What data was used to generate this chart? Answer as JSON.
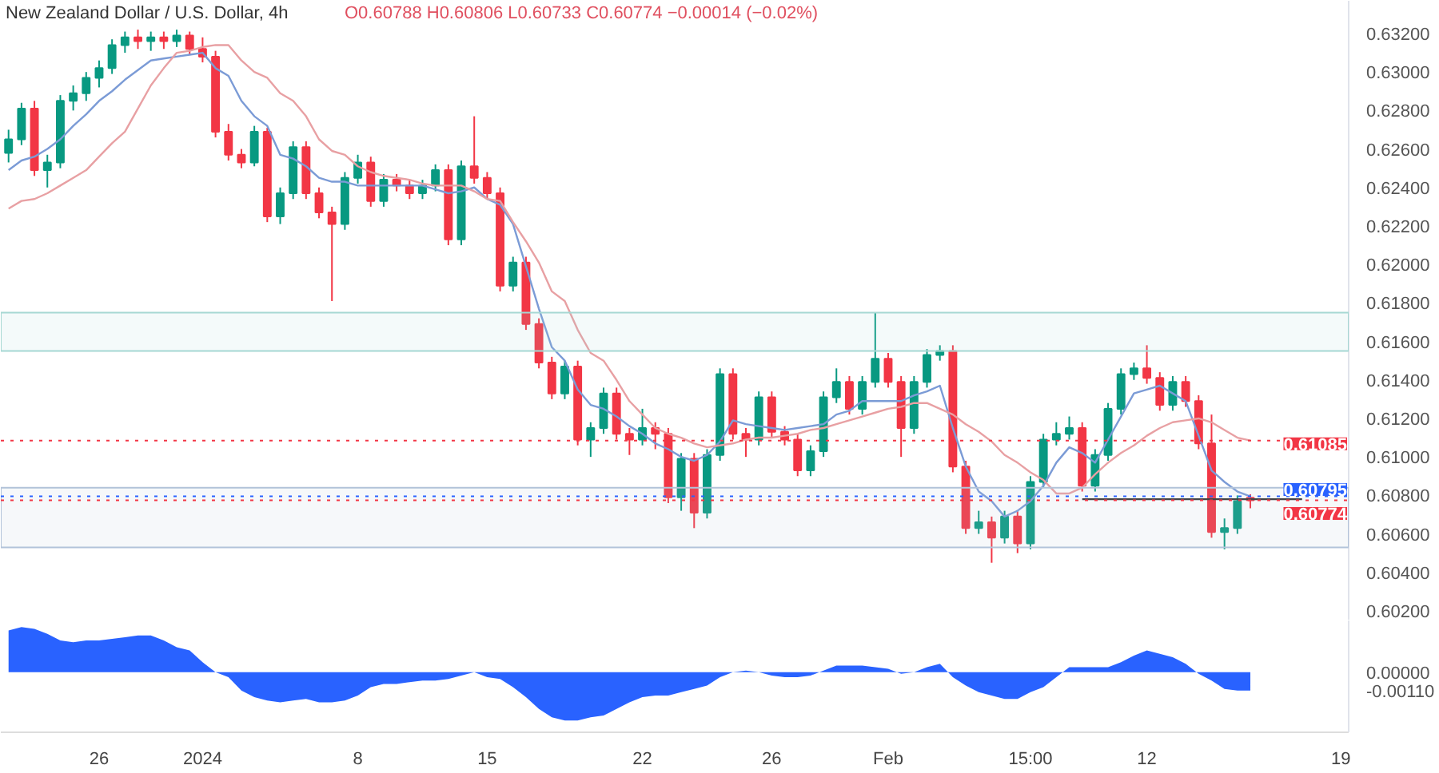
{
  "chart_data": [
    {
      "type": "candlestick",
      "title": "New Zealand Dollar / U.S. Dollar, 4h",
      "subtitle": "O0.60788 H0.60806 L0.60733 C0.60774 −0.00014 (−0.02%)",
      "categories": [
        null,
        null,
        null,
        null,
        null,
        null,
        null,
        null,
        null,
        null,
        null,
        null,
        null,
        null,
        null,
        null,
        null,
        null,
        null,
        null,
        null,
        null,
        null,
        null,
        null,
        null,
        null,
        null,
        null,
        null,
        null,
        null,
        null,
        null,
        null,
        null,
        null,
        null,
        null,
        null,
        null,
        null,
        null,
        null,
        null,
        null,
        null,
        null,
        null,
        null,
        null,
        null,
        null,
        null,
        null,
        null,
        null,
        null,
        null,
        null,
        null,
        null,
        null,
        null,
        null,
        null,
        null,
        null,
        null,
        null,
        null,
        null,
        null,
        null,
        null,
        null,
        null,
        null,
        null,
        null,
        null,
        null,
        null,
        null,
        null,
        null,
        null,
        null,
        null,
        null,
        null,
        null,
        null,
        null,
        null,
        null,
        null,
        null,
        null,
        null,
        null,
        null,
        null,
        null
      ],
      "ohlc": [
        [
          0.6258,
          0.627,
          0.6253,
          0.6265
        ],
        [
          0.6265,
          0.6284,
          0.6262,
          0.6281
        ],
        [
          0.6281,
          0.6285,
          0.6246,
          0.6249
        ],
        [
          0.6249,
          0.6257,
          0.624,
          0.6253
        ],
        [
          0.6253,
          0.6288,
          0.625,
          0.6285
        ],
        [
          0.6285,
          0.6293,
          0.628,
          0.6289
        ],
        [
          0.6289,
          0.63,
          0.6285,
          0.6297
        ],
        [
          0.6297,
          0.6306,
          0.6292,
          0.6302
        ],
        [
          0.6302,
          0.6317,
          0.6299,
          0.6314
        ],
        [
          0.6314,
          0.6321,
          0.631,
          0.6318
        ],
        [
          0.6318,
          0.6322,
          0.6312,
          0.6316
        ],
        [
          0.6316,
          0.6321,
          0.6311,
          0.6318
        ],
        [
          0.6318,
          0.6321,
          0.6312,
          0.6316
        ],
        [
          0.6316,
          0.6322,
          0.6313,
          0.6319
        ],
        [
          0.6319,
          0.6321,
          0.6309,
          0.6312
        ],
        [
          0.6312,
          0.6318,
          0.6305,
          0.6308
        ],
        [
          0.6308,
          0.6311,
          0.6266,
          0.6269
        ],
        [
          0.6269,
          0.6273,
          0.6254,
          0.6257
        ],
        [
          0.6257,
          0.626,
          0.625,
          0.6253
        ],
        [
          0.6253,
          0.6272,
          0.6251,
          0.6269
        ],
        [
          0.6269,
          0.6271,
          0.6222,
          0.6225
        ],
        [
          0.6225,
          0.624,
          0.6221,
          0.6237
        ],
        [
          0.6237,
          0.6264,
          0.6234,
          0.6261
        ],
        [
          0.6261,
          0.6264,
          0.6234,
          0.6237
        ],
        [
          0.6237,
          0.624,
          0.6224,
          0.6227
        ],
        [
          0.6227,
          0.623,
          0.6181,
          0.6221
        ],
        [
          0.6221,
          0.6248,
          0.6218,
          0.6245
        ],
        [
          0.6245,
          0.6257,
          0.6242,
          0.6253
        ],
        [
          0.6253,
          0.6256,
          0.623,
          0.6233
        ],
        [
          0.6233,
          0.6247,
          0.623,
          0.6244
        ],
        [
          0.6244,
          0.6247,
          0.6238,
          0.6241
        ],
        [
          0.6241,
          0.6244,
          0.6234,
          0.6237
        ],
        [
          0.6237,
          0.6244,
          0.6234,
          0.6241
        ],
        [
          0.6241,
          0.6252,
          0.6238,
          0.6249
        ],
        [
          0.6249,
          0.6252,
          0.621,
          0.6213
        ],
        [
          0.6213,
          0.6254,
          0.621,
          0.6251
        ],
        [
          0.6251,
          0.6277,
          0.6242,
          0.6245
        ],
        [
          0.6245,
          0.6248,
          0.6234,
          0.6237
        ],
        [
          0.6237,
          0.624,
          0.6186,
          0.6189
        ],
        [
          0.6189,
          0.6204,
          0.6186,
          0.6201
        ],
        [
          0.6201,
          0.6204,
          0.6166,
          0.6169
        ],
        [
          0.6169,
          0.6172,
          0.6146,
          0.6149
        ],
        [
          0.6149,
          0.6152,
          0.613,
          0.6133
        ],
        [
          0.6133,
          0.615,
          0.613,
          0.6147
        ],
        [
          0.6147,
          0.615,
          0.6106,
          0.6109
        ],
        [
          0.6109,
          0.6118,
          0.61,
          0.6115
        ],
        [
          0.6115,
          0.6136,
          0.6112,
          0.6133
        ],
        [
          0.6133,
          0.6136,
          0.6109,
          0.6112
        ],
        [
          0.6112,
          0.6115,
          0.6101,
          0.6109
        ],
        [
          0.6109,
          0.6125,
          0.6106,
          0.6115
        ],
        [
          0.6115,
          0.6118,
          0.6104,
          0.6112
        ],
        [
          0.6112,
          0.6115,
          0.6076,
          0.6079
        ],
        [
          0.6079,
          0.6102,
          0.6072,
          0.6099
        ],
        [
          0.6099,
          0.6102,
          0.6063,
          0.6071
        ],
        [
          0.6071,
          0.6104,
          0.6068,
          0.6101
        ],
        [
          0.6101,
          0.6146,
          0.6098,
          0.6143
        ],
        [
          0.6143,
          0.6146,
          0.6109,
          0.6112
        ],
        [
          0.6112,
          0.6115,
          0.61,
          0.6109
        ],
        [
          0.6109,
          0.6134,
          0.6106,
          0.6131
        ],
        [
          0.6131,
          0.6134,
          0.611,
          0.6113
        ],
        [
          0.6113,
          0.6116,
          0.6106,
          0.6109
        ],
        [
          0.6109,
          0.6112,
          0.609,
          0.6093
        ],
        [
          0.6093,
          0.6106,
          0.609,
          0.6103
        ],
        [
          0.6103,
          0.6134,
          0.61,
          0.6131
        ],
        [
          0.6131,
          0.6146,
          0.6128,
          0.6139
        ],
        [
          0.6139,
          0.6142,
          0.6122,
          0.6125
        ],
        [
          0.6125,
          0.6142,
          0.6122,
          0.6139
        ],
        [
          0.6139,
          0.6175,
          0.6136,
          0.6151
        ],
        [
          0.6151,
          0.6154,
          0.6136,
          0.6139
        ],
        [
          0.6139,
          0.6142,
          0.61,
          0.6115
        ],
        [
          0.6115,
          0.6142,
          0.6112,
          0.6139
        ],
        [
          0.6139,
          0.6156,
          0.6136,
          0.6153
        ],
        [
          0.6153,
          0.6158,
          0.615,
          0.6155
        ],
        [
          0.6155,
          0.6158,
          0.6092,
          0.6095
        ],
        [
          0.6095,
          0.6098,
          0.606,
          0.6063
        ],
        [
          0.6063,
          0.6072,
          0.606,
          0.6066
        ],
        [
          0.6066,
          0.6069,
          0.6045,
          0.6058
        ],
        [
          0.6058,
          0.6072,
          0.6055,
          0.6069
        ],
        [
          0.6069,
          0.6072,
          0.605,
          0.6055
        ],
        [
          0.6055,
          0.609,
          0.6052,
          0.6087
        ],
        [
          0.6087,
          0.6112,
          0.6084,
          0.6109
        ],
        [
          0.6109,
          0.6118,
          0.6106,
          0.6112
        ],
        [
          0.6112,
          0.6121,
          0.6109,
          0.6115
        ],
        [
          0.6115,
          0.6118,
          0.6082,
          0.6085
        ],
        [
          0.6085,
          0.6104,
          0.6082,
          0.6101
        ],
        [
          0.6101,
          0.6128,
          0.6098,
          0.6125
        ],
        [
          0.6125,
          0.6146,
          0.6122,
          0.6143
        ],
        [
          0.6143,
          0.6149,
          0.614,
          0.6146
        ],
        [
          0.6146,
          0.6158,
          0.6138,
          0.6141
        ],
        [
          0.6141,
          0.6144,
          0.6124,
          0.6127
        ],
        [
          0.6127,
          0.6142,
          0.6124,
          0.6139
        ],
        [
          0.6139,
          0.6142,
          0.6126,
          0.6129
        ],
        [
          0.6129,
          0.6132,
          0.6104,
          0.6107
        ],
        [
          0.6107,
          0.6122,
          0.6058,
          0.6061
        ],
        [
          0.6061,
          0.6068,
          0.6052,
          0.6063
        ],
        [
          0.6063,
          0.608,
          0.606,
          0.6077
        ],
        [
          0.60788,
          0.60806,
          0.60733,
          0.60774
        ],
        null,
        null,
        null,
        null,
        null,
        null,
        null
      ],
      "colors": [
        "#089981",
        "#089981",
        "#f23645",
        "#089981",
        "#089981",
        "#089981",
        "#089981",
        "#089981",
        "#089981",
        "#089981",
        "#f23645",
        "#089981",
        "#f23645",
        "#089981",
        "#f23645",
        "#f23645",
        "#f23645",
        "#f23645",
        "#f23645",
        "#089981",
        "#f23645",
        "#089981",
        "#089981",
        "#f23645",
        "#f23645",
        "#f23645",
        "#089981",
        "#089981",
        "#f23645",
        "#089981",
        "#f23645",
        "#f23645",
        "#089981",
        "#089981",
        "#f23645",
        "#089981",
        "#f23645",
        "#f23645",
        "#f23645",
        "#089981",
        "#f23645",
        "#f23645",
        "#f23645",
        "#089981",
        "#f23645",
        "#089981",
        "#089981",
        "#f23645",
        "#f23645",
        "#089981",
        "#f23645",
        "#f23645",
        "#089981",
        "#f23645",
        "#089981",
        "#089981",
        "#f23645",
        "#f23645",
        "#089981",
        "#f23645",
        "#f23645",
        "#f23645",
        "#089981",
        "#089981",
        "#089981",
        "#f23645",
        "#089981",
        "#089981",
        "#f23645",
        "#f23645",
        "#089981",
        "#089981",
        "#089981",
        "#f23645",
        "#f23645",
        "#089981",
        "#f23645",
        "#089981",
        "#f23645",
        "#089981",
        "#089981",
        "#089981",
        "#089981",
        "#f23645",
        "#089981",
        "#089981",
        "#089981",
        "#089981",
        "#f23645",
        "#f23645",
        "#089981",
        "#f23645",
        "#f23645",
        "#f23645",
        "#089981",
        "#089981",
        "#f23645",
        null,
        null,
        null,
        null,
        null,
        null,
        null
      ],
      "series": [
        {
          "type": "line",
          "color": "#7b9bd6",
          "values": [
            0.6249,
            0.6254,
            0.6256,
            0.626,
            0.6265,
            0.6272,
            0.6278,
            0.6285,
            0.629,
            0.6296,
            0.6301,
            0.6306,
            0.6307,
            0.6308,
            0.6309,
            0.631,
            0.6302,
            0.6298,
            0.6285,
            0.6277,
            0.6272,
            0.6257,
            0.6255,
            0.6251,
            0.6245,
            0.6243,
            0.6243,
            0.6241,
            0.6241,
            0.6241,
            0.6241,
            0.6241,
            0.6241,
            0.6239,
            0.6237,
            0.6238,
            0.624,
            0.6234,
            0.6231,
            0.6221,
            0.6199,
            0.6177,
            0.6157,
            0.615,
            0.6135,
            0.6127,
            0.6125,
            0.6121,
            0.6116,
            0.6112,
            0.6107,
            0.6104,
            0.61,
            0.6098,
            0.6101,
            0.6108,
            0.6119,
            0.6117,
            0.6116,
            0.6115,
            0.6114,
            0.6115,
            0.6116,
            0.6117,
            0.6122,
            0.6124,
            0.6129,
            0.6129,
            0.6129,
            0.6129,
            0.6132,
            0.6134,
            0.6137,
            0.6115,
            0.6095,
            0.6082,
            0.6077,
            0.6069,
            0.6072,
            0.6077,
            0.6085,
            0.6097,
            0.6105,
            0.6102,
            0.6097,
            0.6109,
            0.6121,
            0.6133,
            0.6135,
            0.6137,
            0.6133,
            0.6129,
            0.6111,
            0.6093,
            0.6087,
            0.6082,
            0.60795,
            null,
            null,
            null,
            null,
            null,
            null,
            null
          ]
        },
        {
          "type": "line",
          "color": "#e8a0a3",
          "values": [
            0.6229,
            0.6233,
            0.6234,
            0.6237,
            0.6241,
            0.6245,
            0.6249,
            0.6256,
            0.6263,
            0.6269,
            0.6281,
            0.6293,
            0.6302,
            0.631,
            0.6311,
            0.6313,
            0.6314,
            0.6314,
            0.6306,
            0.63,
            0.6297,
            0.6289,
            0.6285,
            0.6277,
            0.6265,
            0.6259,
            0.6257,
            0.6251,
            0.6248,
            0.6246,
            0.6245,
            0.6244,
            0.6242,
            0.6241,
            0.6241,
            0.6241,
            0.6238,
            0.6234,
            0.6233,
            0.6222,
            0.6212,
            0.6201,
            0.6186,
            0.6181,
            0.6166,
            0.6154,
            0.615,
            0.614,
            0.6129,
            0.6122,
            0.6115,
            0.6112,
            0.611,
            0.6107,
            0.6105,
            0.6106,
            0.6107,
            0.6109,
            0.611,
            0.611,
            0.6111,
            0.6112,
            0.6114,
            0.6115,
            0.6117,
            0.6119,
            0.6121,
            0.6123,
            0.6125,
            0.6126,
            0.6128,
            0.6128,
            0.6125,
            0.6122,
            0.6117,
            0.6113,
            0.6108,
            0.6101,
            0.6097,
            0.6092,
            0.6088,
            0.6081,
            0.6081,
            0.6084,
            0.6091,
            0.6097,
            0.6102,
            0.6106,
            0.6111,
            0.6115,
            0.6118,
            0.6119,
            0.612,
            0.6118,
            0.6114,
            0.611,
            0.61085,
            null,
            null,
            null,
            null,
            null,
            null,
            null
          ]
        },
        {
          "type": "line",
          "color": "#333333",
          "values": [
            null,
            null,
            null,
            null,
            null,
            null,
            null,
            null,
            null,
            null,
            null,
            null,
            null,
            null,
            null,
            null,
            null,
            null,
            null,
            null,
            null,
            null,
            null,
            null,
            null,
            null,
            null,
            null,
            null,
            null,
            null,
            null,
            null,
            null,
            null,
            null,
            null,
            null,
            null,
            null,
            null,
            null,
            null,
            null,
            null,
            null,
            null,
            null,
            null,
            null,
            null,
            null,
            null,
            null,
            null,
            null,
            null,
            null,
            null,
            null,
            null,
            null,
            null,
            null,
            null,
            null,
            null,
            null,
            null,
            null,
            null,
            null,
            null,
            null,
            null,
            null,
            null,
            null,
            null,
            null,
            null,
            null,
            null,
            0.6078,
            0.6078,
            0.6078,
            0.6078,
            0.6078,
            0.6078,
            0.6078,
            0.6078,
            0.6078,
            0.6078,
            0.6078,
            0.6078,
            0.6078,
            0.6078,
            0.6078,
            0.6078,
            0.6078,
            0.6078,
            null,
            null,
            null
          ]
        }
      ],
      "bands": [
        {
          "axis": "y",
          "from": 0.6053,
          "to": 0.6084,
          "color": "#b2c3d9"
        },
        {
          "axis": "y",
          "from": 0.6155,
          "to": 0.6175,
          "color": "#a6d8d3"
        }
      ],
      "ref_lines": [
        {
          "axis": "y",
          "value": 0.61085,
          "label": "0.61085",
          "color": "#f23645",
          "line_style": "dotted"
        },
        {
          "axis": "y",
          "value": 0.60795,
          "label": "0.60795",
          "color": "#2962ff",
          "line_style": "dotted"
        },
        {
          "axis": "y",
          "value": 0.60774,
          "label": "0.60774",
          "color": "#f23645",
          "line_style": "dotted"
        }
      ],
      "ylim": [
        0.6015,
        0.6337
      ],
      "yticks": [
        {
          "value": 0.602,
          "label": "0.60200"
        },
        {
          "value": 0.604,
          "label": "0.60400"
        },
        {
          "value": 0.606,
          "label": "0.60600"
        },
        {
          "value": 0.608,
          "label": "0.60800"
        },
        {
          "value": 0.61,
          "label": "0.61000"
        },
        {
          "value": 0.612,
          "label": "0.61200"
        },
        {
          "value": 0.614,
          "label": "0.61400"
        },
        {
          "value": 0.616,
          "label": "0.61600"
        },
        {
          "value": 0.618,
          "label": "0.61800"
        },
        {
          "value": 0.62,
          "label": "0.62000"
        },
        {
          "value": 0.622,
          "label": "0.62200"
        },
        {
          "value": 0.624,
          "label": "0.62400"
        },
        {
          "value": 0.626,
          "label": "0.62600"
        },
        {
          "value": 0.628,
          "label": "0.62800"
        },
        {
          "value": 0.63,
          "label": "0.63000"
        },
        {
          "value": 0.632,
          "label": "0.63200"
        }
      ],
      "tick_labels": "y"
    },
    {
      "type": "area",
      "color": "#2962ff",
      "categories": [
        null,
        null,
        null,
        null,
        null,
        null,
        null,
        "26",
        null,
        null,
        null,
        null,
        null,
        null,
        null,
        "2024",
        null,
        null,
        null,
        null,
        null,
        null,
        null,
        null,
        null,
        null,
        null,
        "8",
        null,
        null,
        null,
        null,
        null,
        null,
        null,
        null,
        null,
        "15",
        null,
        null,
        null,
        null,
        null,
        null,
        null,
        null,
        null,
        null,
        null,
        "22",
        null,
        null,
        null,
        null,
        null,
        null,
        null,
        null,
        null,
        "26",
        null,
        null,
        null,
        null,
        null,
        null,
        null,
        null,
        "Feb",
        null,
        null,
        null,
        null,
        null,
        null,
        null,
        null,
        null,
        null,
        "15:00",
        null,
        null,
        null,
        null,
        null,
        null,
        null,
        null,
        "12",
        null,
        null,
        null,
        null,
        null,
        null,
        null,
        null,
        null,
        null,
        null,
        null,
        null,
        null,
        "19"
      ],
      "values": [
        0.0025,
        0.0027,
        0.0026,
        0.0023,
        0.0019,
        0.0018,
        0.0019,
        0.0019,
        0.002,
        0.0021,
        0.0022,
        0.0022,
        0.0019,
        0.0015,
        0.0013,
        0.0006,
        0,
        -0.0003,
        -0.0011,
        -0.0015,
        -0.0017,
        -0.0018,
        -0.0017,
        -0.0016,
        -0.0018,
        -0.0018,
        -0.0017,
        -0.0014,
        -0.0009,
        -0.0007,
        -0.0007,
        -0.0006,
        -0.0005,
        -0.0005,
        -0.0004,
        -0.0002,
        0,
        -0.0003,
        -0.0004,
        -0.0009,
        -0.0015,
        -0.0022,
        -0.0027,
        -0.0029,
        -0.0029,
        -0.0027,
        -0.0026,
        -0.0022,
        -0.0018,
        -0.0015,
        -0.0014,
        -0.0014,
        -0.0012,
        -0.001,
        -0.0008,
        -0.0003,
        0,
        0.0001,
        0,
        -0.0002,
        -0.0003,
        -0.0003,
        -0.0002,
        0.0001,
        0.0004,
        0.0004,
        0.0004,
        0.0003,
        0.0002,
        -0.0001,
        0,
        0.0003,
        0.0005,
        -0.0003,
        -0.0008,
        -0.0012,
        -0.0014,
        -0.0016,
        -0.0016,
        -0.0012,
        -0.0009,
        -0.0003,
        0.0003,
        0.0003,
        0.0003,
        0.0003,
        0.0006,
        0.001,
        0.0013,
        0.0011,
        0.0009,
        0.0005,
        -0.0001,
        -0.0005,
        -0.001,
        -0.0011,
        -0.0011,
        null,
        null,
        null,
        null,
        null,
        null,
        null
      ],
      "ylim": [
        -0.0036,
        0.0031
      ],
      "yticks": [
        {
          "value": 0,
          "label": "0.00000"
        },
        {
          "value": -0.0011,
          "label": "-0.00110"
        }
      ]
    }
  ]
}
